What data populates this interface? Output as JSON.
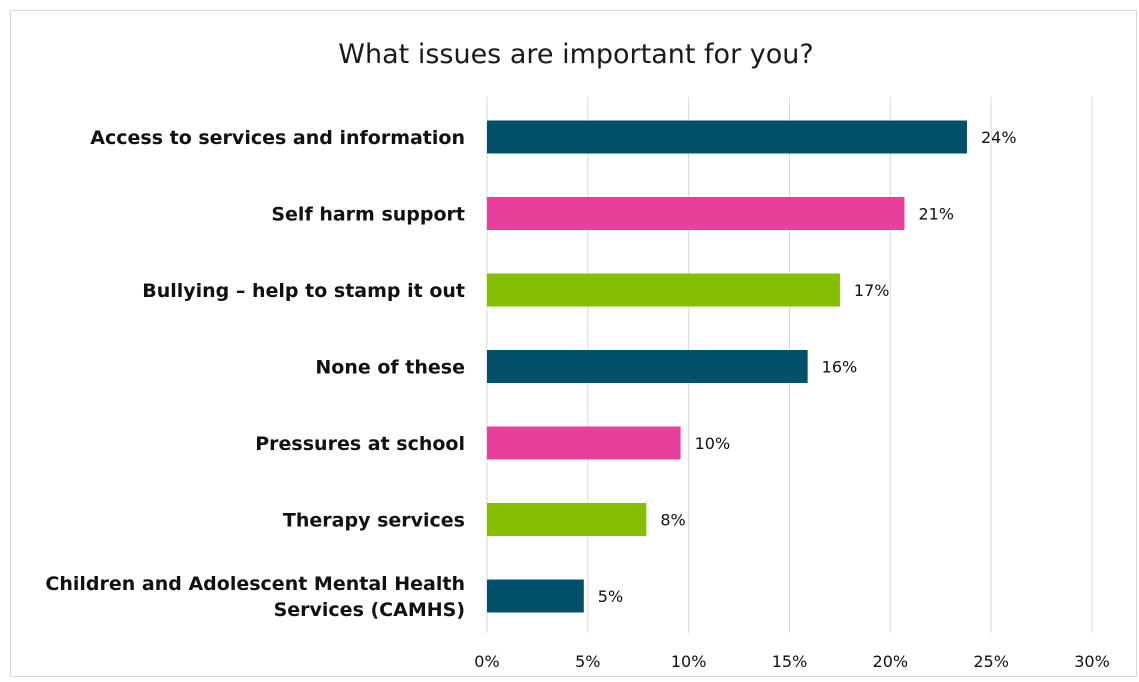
{
  "chart_data": {
    "type": "bar",
    "orientation": "horizontal",
    "title": "What issues are important for you?",
    "categories": [
      [
        "Access to services and information"
      ],
      [
        "Self harm support"
      ],
      [
        "Bullying – help to stamp it out"
      ],
      [
        "None of these"
      ],
      [
        "Pressures at school"
      ],
      [
        "Therapy services"
      ],
      [
        "Children and Adolescent Mental Health",
        "Services (CAMHS)"
      ]
    ],
    "values": [
      23.8,
      20.7,
      17.5,
      15.9,
      9.6,
      7.9,
      4.8
    ],
    "data_labels": [
      "24%",
      "21%",
      "17%",
      "16%",
      "10%",
      "8%",
      "5%"
    ],
    "colors": [
      "#02506b",
      "#e8409a",
      "#84be00",
      "#02506b",
      "#e8409a",
      "#84be00",
      "#02506b"
    ],
    "xlim": [
      0,
      30
    ],
    "xticks": [
      0,
      5,
      10,
      15,
      20,
      25,
      30
    ],
    "xtick_labels": [
      "0%",
      "5%",
      "10%",
      "15%",
      "20%",
      "25%",
      "30%"
    ],
    "xlabel": "",
    "ylabel": "",
    "grid": true,
    "legend": false
  }
}
